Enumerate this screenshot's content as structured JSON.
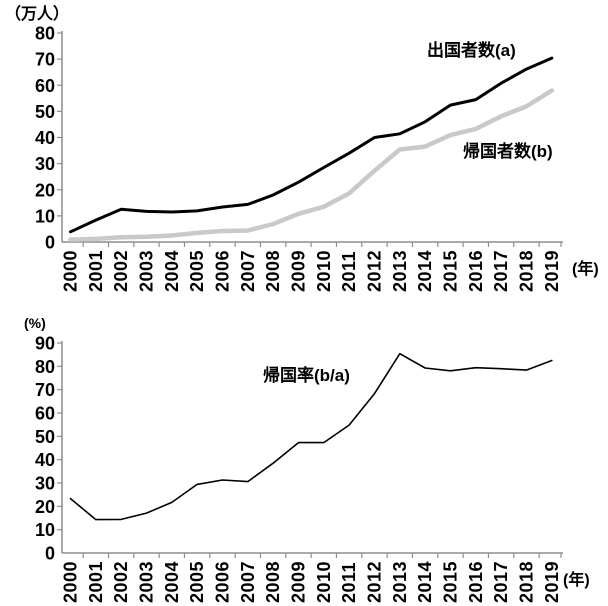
{
  "page": {
    "background": "#ffffff"
  },
  "top_chart": {
    "unit_label": "（万人）",
    "year_axis_label": "(年)",
    "series_a_label": "出国者数(a)",
    "series_b_label": "帰国者数(b)",
    "axis_color": "#8e8e8e",
    "text_color": "#000000"
  },
  "bottom_chart": {
    "unit_label": "(%)",
    "year_axis_label": "(年)",
    "series_label": "帰国率(b/a)",
    "axis_color": "#8e8e8e",
    "text_color": "#000000"
  },
  "chart_data": [
    {
      "type": "line",
      "title": "",
      "x": [
        "2000",
        "2001",
        "2002",
        "2003",
        "2004",
        "2005",
        "2006",
        "2007",
        "2008",
        "2009",
        "2010",
        "2011",
        "2012",
        "2013",
        "2014",
        "2015",
        "2016",
        "2017",
        "2018",
        "2019"
      ],
      "series": [
        {
          "name": "出国者数(a)",
          "color": "#000000",
          "width": 3,
          "values": [
            3.9,
            8.4,
            12.5,
            11.7,
            11.5,
            11.9,
            13.4,
            14.4,
            18.0,
            22.9,
            28.5,
            34.0,
            40.0,
            41.4,
            46.0,
            52.4,
            54.5,
            60.8,
            66.2,
            70.4
          ]
        },
        {
          "name": "帰国者数(b)",
          "color": "#c9c9c9",
          "width": 4.5,
          "values": [
            0.9,
            1.2,
            1.8,
            2.0,
            2.5,
            3.5,
            4.2,
            4.4,
            6.9,
            10.8,
            13.5,
            18.6,
            27.3,
            35.4,
            36.5,
            40.9,
            43.3,
            48.1,
            51.9,
            58.0
          ]
        }
      ],
      "xlabel": "(年)",
      "ylabel": "（万人）",
      "ylim": [
        0,
        80
      ],
      "ytick_step": 10,
      "grid": false,
      "legend_position": "inline"
    },
    {
      "type": "line",
      "title": "",
      "x": [
        "2000",
        "2001",
        "2002",
        "2003",
        "2004",
        "2005",
        "2006",
        "2007",
        "2008",
        "2009",
        "2010",
        "2011",
        "2012",
        "2013",
        "2014",
        "2015",
        "2016",
        "2017",
        "2018",
        "2019"
      ],
      "series": [
        {
          "name": "帰国率(b/a)",
          "color": "#000000",
          "width": 1.6,
          "values": [
            23.3,
            14.3,
            14.4,
            17.1,
            21.7,
            29.4,
            31.3,
            30.6,
            38.5,
            47.3,
            47.3,
            54.8,
            68.3,
            85.4,
            79.3,
            78.1,
            79.4,
            79.0,
            78.4,
            82.5
          ]
        }
      ],
      "xlabel": "(年)",
      "ylabel": "(%)",
      "ylim": [
        0,
        90
      ],
      "ytick_step": 10,
      "grid": false,
      "legend_position": "inline"
    }
  ]
}
